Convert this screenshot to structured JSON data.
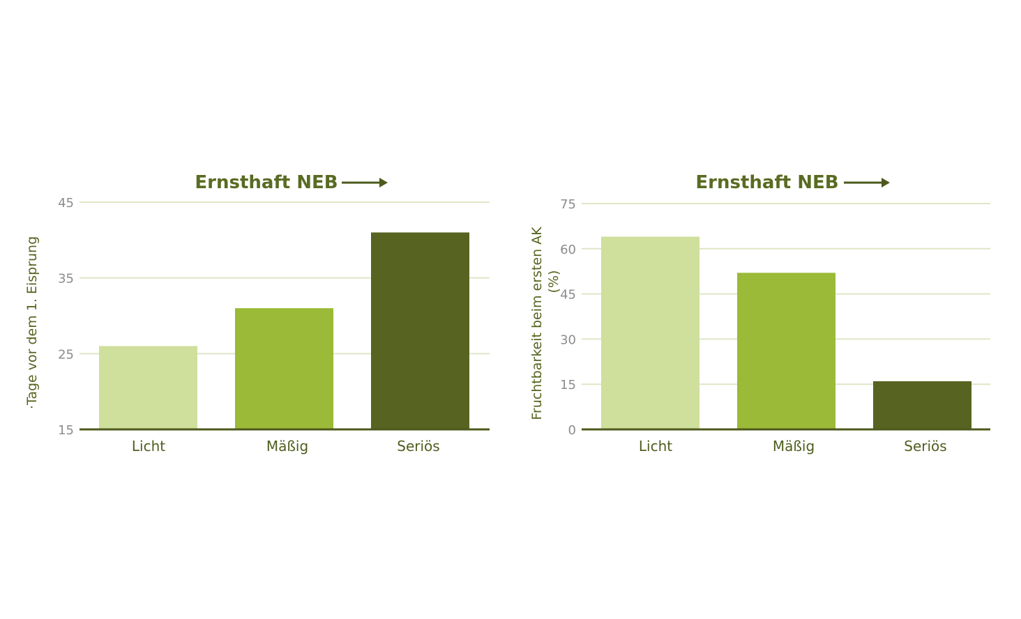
{
  "chart_data": [
    {
      "type": "bar",
      "title": "Ernsthaft NEB",
      "ylabel": "·Tage vor dem 1. Eisprung",
      "xlabel": "",
      "categories": [
        "Licht",
        "Mäßig",
        "Seriös"
      ],
      "values": [
        26,
        31,
        41
      ],
      "ylim": [
        15,
        45
      ],
      "yticks": [
        15,
        25,
        35,
        45
      ],
      "grid": true,
      "bar_colors": [
        "#cfdf9c",
        "#9aba38",
        "#576320"
      ]
    },
    {
      "type": "bar",
      "title": "Ernsthaft NEB",
      "ylabel": "Fruchtbarkeit beim ersten AK (%)",
      "xlabel": "",
      "categories": [
        "Licht",
        "Mäßig",
        "Seriös"
      ],
      "values": [
        64,
        52,
        16
      ],
      "ylim": [
        0,
        75
      ],
      "yticks": [
        0,
        15,
        30,
        45,
        60,
        75
      ],
      "grid": true,
      "bar_colors": [
        "#cfdf9c",
        "#9aba38",
        "#576320"
      ]
    }
  ],
  "colors": {
    "title": "#5a6b22",
    "grid": "#dfe6c6",
    "axis": "#4d5a1c",
    "tick": "#8c8c8c"
  }
}
